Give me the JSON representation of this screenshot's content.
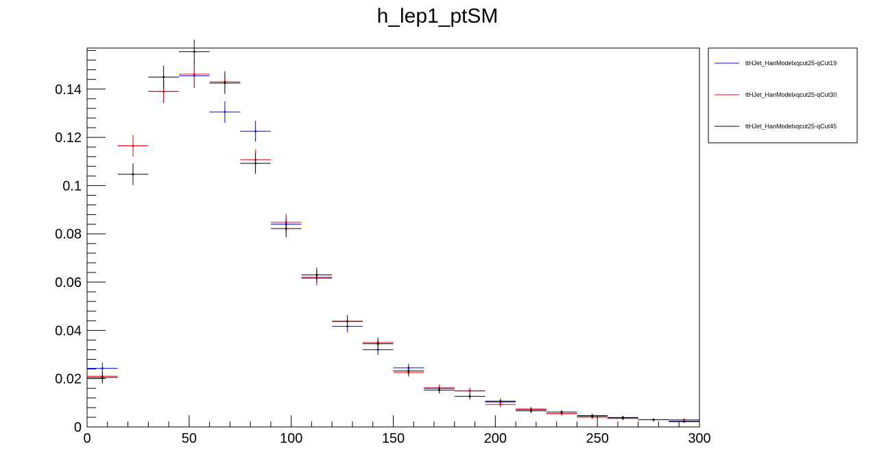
{
  "chart_data": {
    "type": "scatter",
    "title": "h_lep1_ptSM",
    "xlabel": "",
    "ylabel": "",
    "xlim": [
      0,
      300
    ],
    "ylim": [
      0,
      0.157
    ],
    "bin_width": 15,
    "xticks": [
      0,
      50,
      100,
      150,
      200,
      250,
      300
    ],
    "yticks": [
      0,
      0.02,
      0.04,
      0.06,
      0.08,
      0.1,
      0.12,
      0.14
    ],
    "ytick_labels": [
      "0",
      "0.02",
      "0.04",
      "0.06",
      "0.08",
      "0.1",
      "0.12",
      "0.14"
    ],
    "grid": false,
    "legend_position": "top-right-outside",
    "x": [
      7.5,
      22.5,
      37.5,
      52.5,
      67.5,
      82.5,
      97.5,
      112.5,
      127.5,
      142.5,
      157.5,
      172.5,
      187.5,
      202.5,
      217.5,
      232.5,
      247.5,
      262.5,
      277.5,
      292.5
    ],
    "series": [
      {
        "name": "ttHJet_HanModelxqcut25-qCut19",
        "color": "#0000ff",
        "values": [
          0.0243,
          0.1165,
          0.139,
          0.1455,
          0.1305,
          0.1225,
          0.084,
          0.0617,
          0.0417,
          0.032,
          0.0245,
          0.016,
          0.0149,
          0.0103,
          0.0074,
          0.0055,
          0.0047,
          0.0039,
          0.003,
          0.0025
        ],
        "errors": [
          0.0025,
          0.0045,
          0.0048,
          0.005,
          0.0045,
          0.0043,
          0.0036,
          0.003,
          0.0025,
          0.0022,
          0.0018,
          0.0014,
          0.0013,
          0.0011,
          0.0009,
          0.0008,
          0.0007,
          0.0007,
          0.0006,
          0.0005
        ]
      },
      {
        "name": "ttHJet_HanModelxqcut25-qCut30",
        "color": "#ff0000",
        "values": [
          0.021,
          0.1165,
          0.139,
          0.1462,
          0.143,
          0.1107,
          0.0848,
          0.062,
          0.0437,
          0.035,
          0.0225,
          0.0162,
          0.015,
          0.0093,
          0.0072,
          0.0055,
          0.004,
          0.0035,
          0.003,
          0.003
        ]
      },
      {
        "name": "ttHJet_HanModelxqcut25-qCut45",
        "color": "#000000",
        "values": [
          0.0205,
          0.1047,
          0.145,
          0.1555,
          0.1425,
          0.1092,
          0.0822,
          0.063,
          0.0438,
          0.0345,
          0.0232,
          0.0153,
          0.0127,
          0.0107,
          0.0067,
          0.0062,
          0.0045,
          0.0038,
          0.003,
          0.0022
        ]
      }
    ]
  }
}
